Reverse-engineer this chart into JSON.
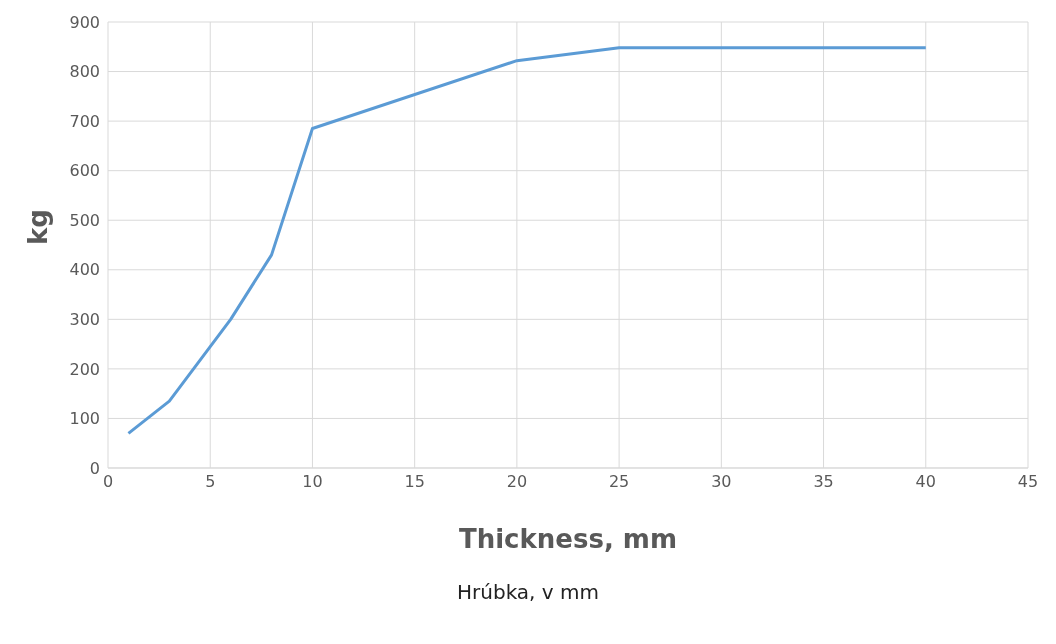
{
  "chart_data": {
    "type": "line",
    "x": [
      1,
      3,
      6,
      8,
      10,
      20,
      25,
      40
    ],
    "series": [
      {
        "color": "#5b9bd5",
        "values": [
          70,
          135,
          300,
          430,
          685,
          822,
          848,
          848
        ]
      }
    ],
    "xlim": [
      0,
      45
    ],
    "xticks": [
      0,
      5,
      10,
      15,
      20,
      25,
      30,
      35,
      40,
      45
    ],
    "ylim": [
      0,
      900
    ],
    "yticks": [
      0,
      100,
      200,
      300,
      400,
      500,
      600,
      700,
      800,
      900
    ],
    "xlabel": "Thickness, mm",
    "ylabel": "kg",
    "annotations": [
      "Hrúbka, v mm"
    ],
    "grid": true,
    "marker": "none",
    "line_style": "solid"
  }
}
